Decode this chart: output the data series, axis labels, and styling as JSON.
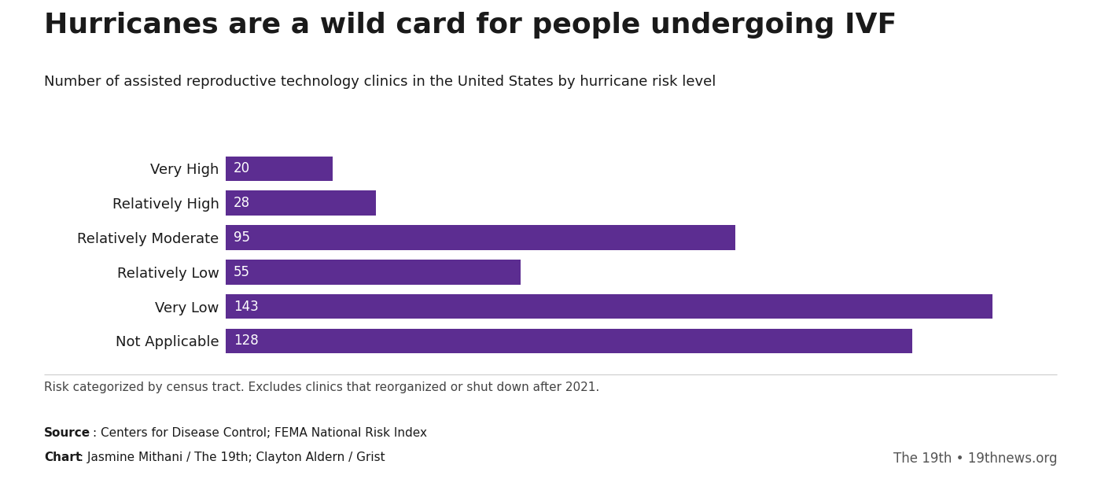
{
  "title": "Hurricanes are a wild card for people undergoing IVF",
  "subtitle": "Number of assisted reproductive technology clinics in the United States by hurricane risk level",
  "categories": [
    "Very High",
    "Relatively High",
    "Relatively Moderate",
    "Relatively Low",
    "Very Low",
    "Not Applicable"
  ],
  "values": [
    20,
    28,
    95,
    55,
    143,
    128
  ],
  "bar_color": "#5c2d91",
  "label_color": "#ffffff",
  "text_color": "#1a1a1a",
  "background_color": "#ffffff",
  "footnote": "Risk categorized by census tract. Excludes clinics that reorganized or shut down after 2021.",
  "source_bold": "Source",
  "source_text": ": Centers for Disease Control; FEMA National Risk Index",
  "chart_bold": "Chart",
  "chart_text": ": Jasmine Mithani / The 19th; Clayton Aldern / Grist",
  "credit": "The 19th • 19thnews.org",
  "title_fontsize": 26,
  "subtitle_fontsize": 13,
  "bar_label_fontsize": 12,
  "category_fontsize": 13,
  "footnote_fontsize": 11,
  "source_fontsize": 11,
  "credit_fontsize": 12,
  "xlim_max": 155,
  "bar_height": 0.72
}
